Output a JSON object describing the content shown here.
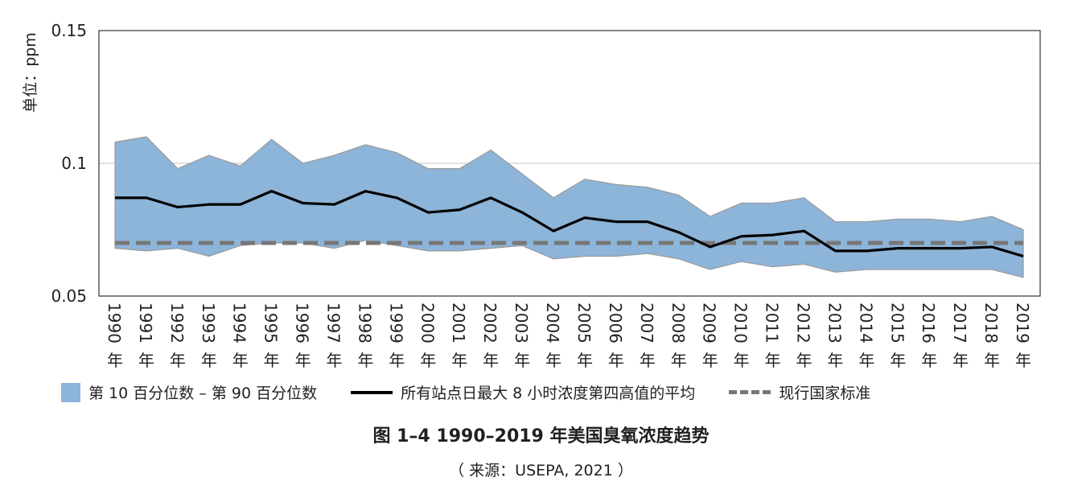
{
  "chart_data": {
    "type": "area",
    "ylabel": "单位：ppm",
    "ylim": [
      0.05,
      0.15
    ],
    "yticks": [
      "0.15",
      "0.1",
      "0.05"
    ],
    "ytick_values": [
      0.15,
      0.1,
      0.05
    ],
    "categories": [
      "1990年",
      "1991年",
      "1992年",
      "1993年",
      "1994年",
      "1995年",
      "1996年",
      "1997年",
      "1998年",
      "1999年",
      "2000年",
      "2001年",
      "2002年",
      "2003年",
      "2004年",
      "2005年",
      "2006年",
      "2007年",
      "2008年",
      "2009年",
      "2010年",
      "2011年",
      "2012年",
      "2013年",
      "2014年",
      "2015年",
      "2016年",
      "2017年",
      "2018年",
      "2019年"
    ],
    "grid": true,
    "series": [
      {
        "name": "第 10 百分位数 – 第 90 百分位数",
        "kind": "band",
        "low": [
          0.068,
          0.067,
          0.068,
          0.065,
          0.069,
          0.07,
          0.07,
          0.068,
          0.071,
          0.069,
          0.067,
          0.067,
          0.068,
          0.069,
          0.064,
          0.065,
          0.065,
          0.066,
          0.064,
          0.06,
          0.063,
          0.061,
          0.062,
          0.059,
          0.06,
          0.06,
          0.06,
          0.06,
          0.06,
          0.057
        ],
        "high": [
          0.108,
          0.11,
          0.098,
          0.103,
          0.099,
          0.109,
          0.1,
          0.103,
          0.107,
          0.104,
          0.098,
          0.098,
          0.105,
          0.096,
          0.087,
          0.094,
          0.092,
          0.091,
          0.088,
          0.08,
          0.085,
          0.085,
          0.087,
          0.078,
          0.078,
          0.079,
          0.079,
          0.078,
          0.08,
          0.075
        ],
        "color": "#8db4d9"
      },
      {
        "name": "所有站点日最大 8 小时浓度第四高值的平均",
        "kind": "line",
        "values": [
          0.087,
          0.087,
          0.0835,
          0.0845,
          0.0845,
          0.0895,
          0.085,
          0.0845,
          0.0895,
          0.087,
          0.0815,
          0.0825,
          0.087,
          0.0815,
          0.0745,
          0.0795,
          0.078,
          0.078,
          0.074,
          0.0685,
          0.0725,
          0.073,
          0.0745,
          0.067,
          0.067,
          0.068,
          0.068,
          0.068,
          0.0685,
          0.065
        ],
        "color": "#000000"
      },
      {
        "name": "现行国家标准",
        "kind": "dashed",
        "value": 0.07,
        "color": "#777777"
      }
    ]
  },
  "legend": {
    "band": "第 10 百分位数 – 第 90 百分位数",
    "line": "所有站点日最大 8 小时浓度第四高值的平均",
    "standard": "现行国家标准"
  },
  "caption": "图 1–4 1990–2019 年美国臭氧浓度趋势",
  "source": "（ 来源：USEPA, 2021 ）"
}
